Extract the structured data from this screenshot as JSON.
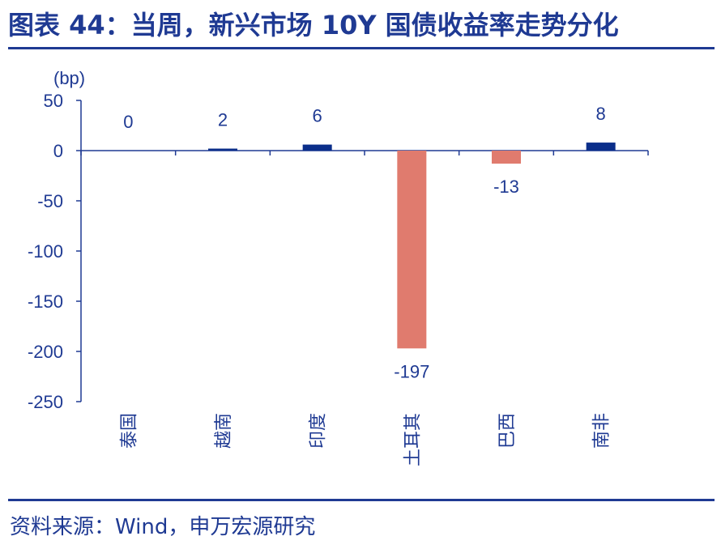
{
  "header": {
    "title": "图表 44：当周，新兴市场 10Y 国债收益率走势分化"
  },
  "footer": {
    "source": "资料来源：Wind，申万宏源研究"
  },
  "colors": {
    "positive": "#0b2e8a",
    "negative": "#e07b6e",
    "axis": "#1f3a93",
    "text": "#1f3a93"
  },
  "chart_data": {
    "type": "bar",
    "unit": "(bp)",
    "categories": [
      "泰国",
      "越南",
      "印度",
      "土耳其",
      "巴西",
      "南非"
    ],
    "values": [
      0,
      2,
      6,
      -197,
      -13,
      8
    ],
    "data_labels": [
      "0",
      "2",
      "6",
      "-197",
      "-13",
      "8"
    ],
    "ylim": [
      -250,
      50
    ],
    "yticks": [
      50,
      0,
      -50,
      -100,
      -150,
      -200,
      -250
    ],
    "ytick_labels": [
      "50",
      "0",
      "-50",
      "-100",
      "-150",
      "-200",
      "-250"
    ],
    "legend": "none",
    "grid": false
  }
}
